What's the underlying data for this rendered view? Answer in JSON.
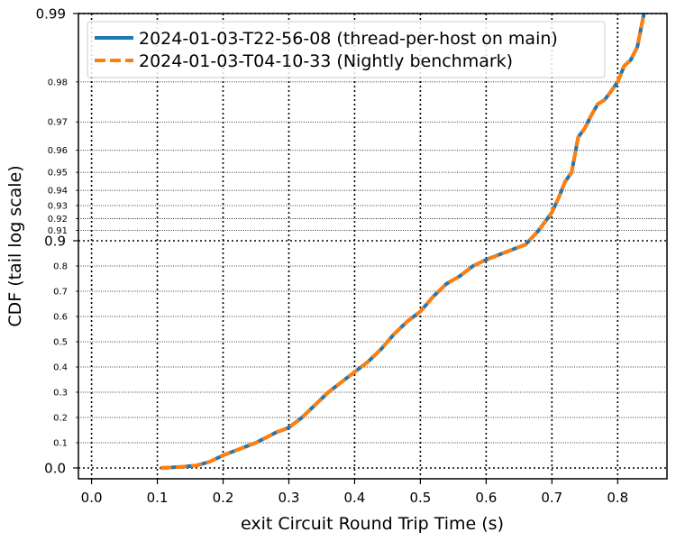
{
  "chart_data": {
    "type": "line",
    "title": "",
    "xlabel": "exit Circuit Round Trip Time (s)",
    "ylabel": "CDF (tail log scale)",
    "xlim": [
      -0.02,
      0.875
    ],
    "x_ticks": [
      {
        "value": 0.0,
        "label": "0.0"
      },
      {
        "value": 0.1,
        "label": "0.1"
      },
      {
        "value": 0.2,
        "label": "0.2"
      },
      {
        "value": 0.3,
        "label": "0.3"
      },
      {
        "value": 0.4,
        "label": "0.4"
      },
      {
        "value": 0.5,
        "label": "0.5"
      },
      {
        "value": 0.6,
        "label": "0.6"
      },
      {
        "value": 0.7,
        "label": "0.7"
      },
      {
        "value": 0.8,
        "label": "0.8"
      }
    ],
    "y_scale": "tail-log (linear below 0.9, log of 1-CDF above 0.9)",
    "y_major_ticks": [
      {
        "value": 0.0,
        "label": "0.0"
      },
      {
        "value": 0.9,
        "label": "0.9"
      },
      {
        "value": 0.99,
        "label": "0.99"
      }
    ],
    "y_minor_ticks": [
      {
        "value": 0.1,
        "label": "0.1"
      },
      {
        "value": 0.2,
        "label": "0.2"
      },
      {
        "value": 0.3,
        "label": "0.3"
      },
      {
        "value": 0.4,
        "label": "0.4"
      },
      {
        "value": 0.5,
        "label": "0.5"
      },
      {
        "value": 0.6,
        "label": "0.6"
      },
      {
        "value": 0.7,
        "label": "0.7"
      },
      {
        "value": 0.8,
        "label": "0.8"
      },
      {
        "value": 0.91,
        "label": "0.91"
      },
      {
        "value": 0.92,
        "label": "0.92"
      },
      {
        "value": 0.93,
        "label": "0.93"
      },
      {
        "value": 0.94,
        "label": "0.94"
      },
      {
        "value": 0.95,
        "label": "0.95"
      },
      {
        "value": 0.96,
        "label": "0.96"
      },
      {
        "value": 0.97,
        "label": "0.97"
      },
      {
        "value": 0.98,
        "label": "0.98"
      }
    ],
    "grid": true,
    "legend_position": "top-left",
    "series": [
      {
        "name": "2024-01-03-T22-56-08 (thread-per-host on main)",
        "color": "#1f77b4",
        "style": "solid",
        "x": [
          0.105,
          0.12,
          0.14,
          0.16,
          0.18,
          0.2,
          0.22,
          0.25,
          0.28,
          0.3,
          0.32,
          0.34,
          0.36,
          0.38,
          0.4,
          0.42,
          0.44,
          0.46,
          0.48,
          0.5,
          0.52,
          0.54,
          0.56,
          0.58,
          0.6,
          0.62,
          0.64,
          0.66,
          0.68,
          0.7,
          0.71,
          0.72,
          0.73,
          0.74,
          0.75,
          0.76,
          0.77,
          0.78,
          0.79,
          0.8,
          0.81,
          0.82,
          0.83,
          0.84
        ],
        "y": [
          0.0,
          0.002,
          0.005,
          0.01,
          0.025,
          0.05,
          0.07,
          0.1,
          0.14,
          0.16,
          0.2,
          0.25,
          0.3,
          0.34,
          0.38,
          0.42,
          0.47,
          0.53,
          0.58,
          0.62,
          0.68,
          0.73,
          0.76,
          0.8,
          0.825,
          0.845,
          0.865,
          0.885,
          0.91,
          0.925,
          0.935,
          0.945,
          0.95,
          0.965,
          0.968,
          0.972,
          0.975,
          0.976,
          0.978,
          0.98,
          0.983,
          0.984,
          0.986,
          0.99
        ]
      },
      {
        "name": "2024-01-03-T04-10-33 (Nightly benchmark)",
        "color": "#ff7f0e",
        "style": "dashed",
        "x": [
          0.105,
          0.12,
          0.14,
          0.16,
          0.18,
          0.2,
          0.22,
          0.25,
          0.28,
          0.3,
          0.32,
          0.34,
          0.36,
          0.38,
          0.4,
          0.42,
          0.44,
          0.46,
          0.48,
          0.5,
          0.52,
          0.54,
          0.56,
          0.58,
          0.6,
          0.62,
          0.64,
          0.66,
          0.68,
          0.7,
          0.71,
          0.72,
          0.73,
          0.74,
          0.75,
          0.76,
          0.77,
          0.78,
          0.79,
          0.8,
          0.81,
          0.82,
          0.83,
          0.84
        ],
        "y": [
          0.0,
          0.002,
          0.005,
          0.01,
          0.025,
          0.05,
          0.07,
          0.1,
          0.14,
          0.16,
          0.2,
          0.25,
          0.3,
          0.34,
          0.38,
          0.42,
          0.47,
          0.53,
          0.58,
          0.62,
          0.68,
          0.73,
          0.76,
          0.8,
          0.825,
          0.845,
          0.865,
          0.885,
          0.91,
          0.925,
          0.935,
          0.945,
          0.95,
          0.965,
          0.968,
          0.972,
          0.975,
          0.976,
          0.978,
          0.98,
          0.983,
          0.984,
          0.986,
          0.99
        ]
      }
    ]
  }
}
